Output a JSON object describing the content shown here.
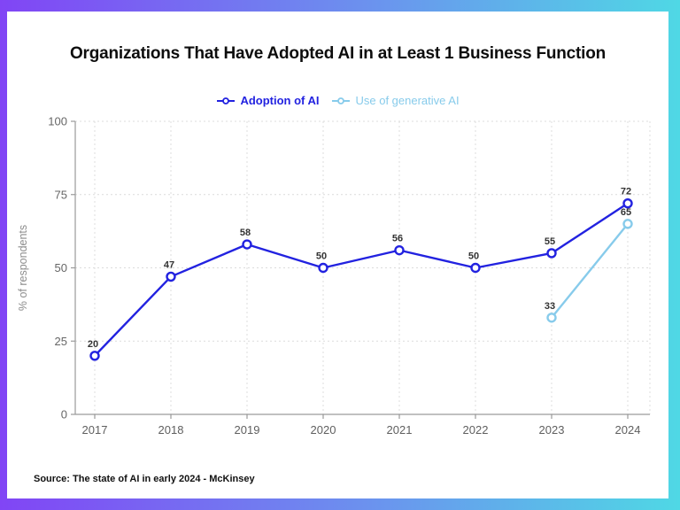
{
  "frame": {
    "gradient_left": "#8145f5",
    "gradient_mid": "#6b93ee",
    "gradient_right": "#4fd8e5"
  },
  "source": "Source: The state of AI in early 2024 - McKinsey",
  "chart_data": {
    "type": "line",
    "title": "Organizations That Have Adopted AI in at Least 1 Business Function",
    "x": [
      "2017",
      "2018",
      "2019",
      "2020",
      "2021",
      "2022",
      "2023",
      "2024"
    ],
    "series": [
      {
        "name": "Adoption of AI",
        "color": "#2222e0",
        "values": [
          20,
          47,
          58,
          50,
          56,
          50,
          55,
          72
        ]
      },
      {
        "name": "Use of generative AI",
        "color": "#87cbeb",
        "values": [
          null,
          null,
          null,
          null,
          null,
          null,
          33,
          65
        ]
      }
    ],
    "xlabel": "",
    "ylabel": "% of respondents",
    "yticks": [
      0,
      25,
      50,
      75,
      100
    ],
    "ylim": [
      0,
      100
    ],
    "grid": true,
    "legend_position": "top",
    "point_labels": true,
    "marker": "open-circle"
  }
}
